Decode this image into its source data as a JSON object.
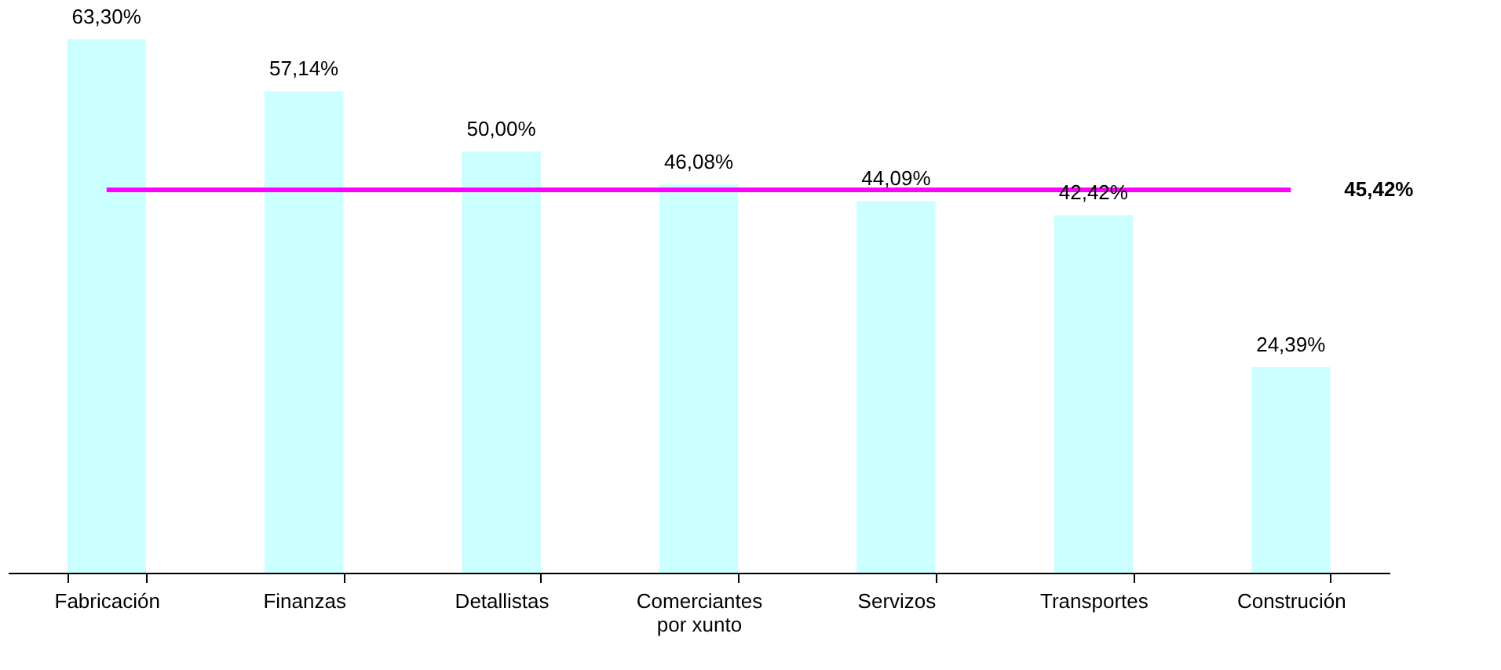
{
  "chart_data": {
    "type": "bar",
    "categories": [
      "Fabricación",
      "Finanzas",
      "Detallistas",
      "Comerciantes\npor xunto",
      "Servizos",
      "Transportes",
      "Construción"
    ],
    "values": [
      63.3,
      57.14,
      50.0,
      46.08,
      44.09,
      42.42,
      24.39
    ],
    "value_labels": [
      "63,30%",
      "57,14%",
      "50,00%",
      "46,08%",
      "44,09%",
      "42,42%",
      "24,39%"
    ],
    "color": "#ccffff",
    "ref_lines": [
      {
        "axis": "y",
        "value": 45.42,
        "label": "45,42%",
        "color": "#ff00ff",
        "line_style": "solid"
      }
    ]
  }
}
